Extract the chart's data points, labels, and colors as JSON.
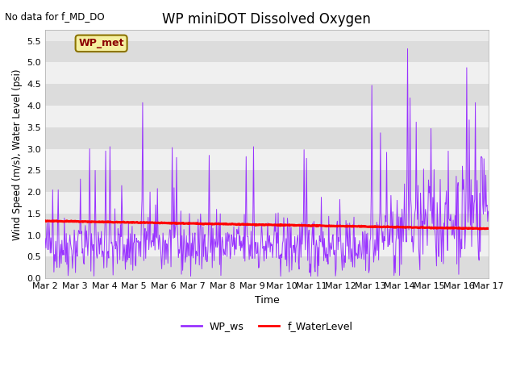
{
  "title": "WP miniDOT Dissolved Oxygen",
  "no_data_text": "No data for f_MD_DO",
  "xlabel": "Time",
  "ylabel": "Wind Speed (m/s), Water Level (psi)",
  "ylim_max": 5.75,
  "yticks": [
    0.0,
    0.5,
    1.0,
    1.5,
    2.0,
    2.5,
    3.0,
    3.5,
    4.0,
    4.5,
    5.0,
    5.5
  ],
  "wp_met_label": "WP_met",
  "legend_ws_label": "WP_ws",
  "legend_wl_label": "f_WaterLevel",
  "ws_color": "#9933FF",
  "wl_color": "#FF0000",
  "background_color": "#ffffff",
  "plot_bg_color": "#EBEBEB",
  "band_light": "#F0F0F0",
  "band_dark": "#DCDCDC",
  "num_days": 15,
  "start_day": 2,
  "seed": 42,
  "figwidth": 6.4,
  "figheight": 4.8,
  "dpi": 100
}
